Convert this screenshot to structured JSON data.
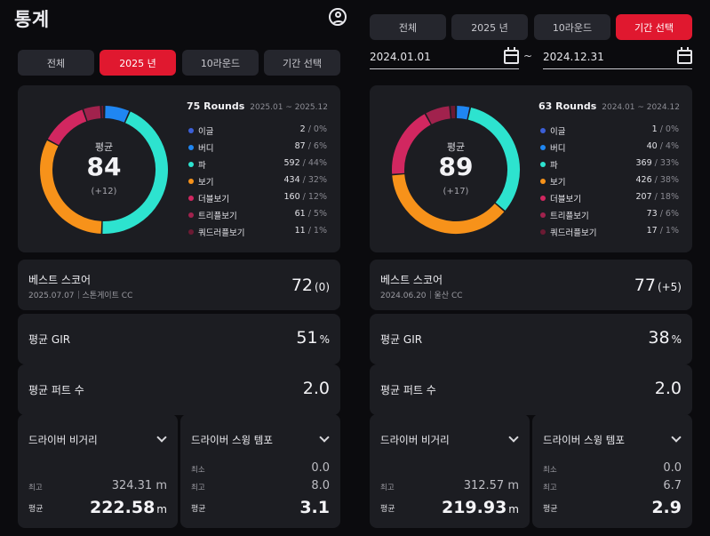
{
  "left": {
    "title": "통계",
    "tabs": [
      {
        "label": "전체",
        "active": false
      },
      {
        "label": "2025 년",
        "active": true
      },
      {
        "label": "10라운드",
        "active": false
      },
      {
        "label": "기간 선택",
        "active": false
      }
    ],
    "summary": {
      "rounds": "75 Rounds",
      "period": "2025.01 ~ 2025.12",
      "avg_label": "평균",
      "avg": "84",
      "diff": "(+12)",
      "legend": [
        {
          "name": "이글",
          "count": "2",
          "pct": " / 0%",
          "value": 2,
          "color": "#3b5fd8"
        },
        {
          "name": "버디",
          "count": "87",
          "pct": " / 6%",
          "value": 87,
          "color": "#1f86f2"
        },
        {
          "name": "파",
          "count": "592",
          "pct": " / 44%",
          "value": 592,
          "color": "#2de3cf"
        },
        {
          "name": "보기",
          "count": "434",
          "pct": " / 32%",
          "value": 434,
          "color": "#f7921a"
        },
        {
          "name": "더블보기",
          "count": "160",
          "pct": " / 12%",
          "value": 160,
          "color": "#d12760"
        },
        {
          "name": "트리플보기",
          "count": "61",
          "pct": " / 5%",
          "value": 61,
          "color": "#a1224d"
        },
        {
          "name": "쿼드러플보기",
          "count": "11",
          "pct": " / 1%",
          "value": 11,
          "color": "#6b1a33"
        }
      ]
    },
    "best": {
      "title": "베스트 스코어",
      "date": "2025.07.07",
      "course": "스톤게이트 CC",
      "score": "72",
      "diff": "(0)"
    },
    "gir": {
      "title": "평균 GIR",
      "value": "51",
      "unit": "%"
    },
    "putts": {
      "title": "평균 퍼트 수",
      "value": "2.0"
    },
    "driver": {
      "title": "드라이버 비거리",
      "max_label": "최고",
      "max": "324.31 m",
      "avg_label": "평균",
      "avg": "222.58",
      "unit": "m"
    },
    "tempo": {
      "title": "드라이버 스윙 템포",
      "min_label": "최소",
      "min": "0.0",
      "max_label": "최고",
      "max": "8.0",
      "avg_label": "평균",
      "avg": "3.1"
    }
  },
  "right": {
    "tabs": [
      {
        "label": "전체",
        "active": false
      },
      {
        "label": "2025 년",
        "active": false
      },
      {
        "label": "10라운드",
        "active": false
      },
      {
        "label": "기간 선택",
        "active": true
      }
    ],
    "date_from": "2024.01.01",
    "date_sep": "~",
    "date_to": "2024.12.31",
    "summary": {
      "rounds": "63 Rounds",
      "period": "2024.01 ~ 2024.12",
      "avg_label": "평균",
      "avg": "89",
      "diff": "(+17)",
      "legend": [
        {
          "name": "이글",
          "count": "1",
          "pct": " / 0%",
          "value": 1,
          "color": "#3b5fd8"
        },
        {
          "name": "버디",
          "count": "40",
          "pct": " / 4%",
          "value": 40,
          "color": "#1f86f2"
        },
        {
          "name": "파",
          "count": "369",
          "pct": " / 33%",
          "value": 369,
          "color": "#2de3cf"
        },
        {
          "name": "보기",
          "count": "426",
          "pct": " / 38%",
          "value": 426,
          "color": "#f7921a"
        },
        {
          "name": "더블보기",
          "count": "207",
          "pct": " / 18%",
          "value": 207,
          "color": "#d12760"
        },
        {
          "name": "트리플보기",
          "count": "73",
          "pct": " / 6%",
          "value": 73,
          "color": "#a1224d"
        },
        {
          "name": "쿼드러플보기",
          "count": "17",
          "pct": " / 1%",
          "value": 17,
          "color": "#6b1a33"
        }
      ]
    },
    "best": {
      "title": "베스트 스코어",
      "date": "2024.06.20",
      "course": "울산 CC",
      "score": "77",
      "diff": "(+5)"
    },
    "gir": {
      "title": "평균 GIR",
      "value": "38",
      "unit": "%"
    },
    "putts": {
      "title": "평균 퍼트 수",
      "value": "2.0"
    },
    "driver": {
      "title": "드라이버 비거리",
      "max_label": "최고",
      "max": "312.57 m",
      "avg_label": "평균",
      "avg": "219.93",
      "unit": "m"
    },
    "tempo": {
      "title": "드라이버 스윙 템포",
      "min_label": "최소",
      "min": "0.0",
      "max_label": "최고",
      "max": "6.7",
      "avg_label": "평균",
      "avg": "2.9"
    }
  }
}
